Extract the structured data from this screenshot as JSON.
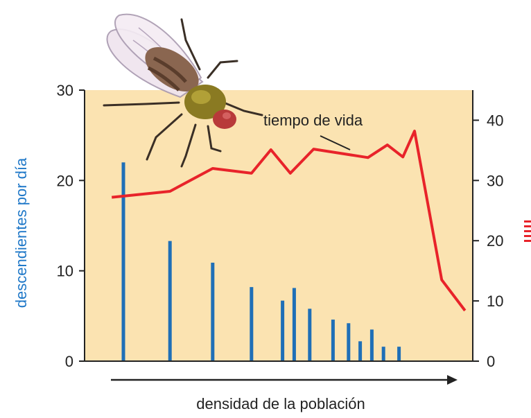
{
  "chart_data": {
    "type": "bar",
    "xlabel": "densidad de la población",
    "ylabel": "descendientes por día",
    "ylim": [
      0,
      30
    ],
    "y_ticks": [
      "0",
      "10",
      "20",
      "30"
    ],
    "y2_ticks": [
      "0",
      "10",
      "20",
      "30",
      "40"
    ],
    "y2lim": [
      0,
      45
    ],
    "annotation": "tiempo de vida",
    "colors": {
      "plot_background": "#fbe3b1",
      "bars": "#1f6fb7",
      "line": "#e8232a",
      "ylabel": "#1f78c8"
    },
    "grid": false,
    "bars": {
      "x": [
        10,
        22,
        33,
        43,
        51,
        54,
        58,
        64,
        68,
        71,
        74,
        77,
        81
      ],
      "values": [
        22,
        13.3,
        10.9,
        8.2,
        6.7,
        8.1,
        5.8,
        4.6,
        4.2,
        2.2,
        3.5,
        1.6,
        1.6
      ]
    },
    "series": [
      {
        "x": [
          7,
          22,
          33,
          43,
          48,
          53,
          59,
          73,
          78,
          82,
          85,
          92,
          98
        ],
        "values": [
          27.2,
          28.2,
          32,
          31.2,
          35.1,
          31.2,
          35.2,
          33.8,
          35.9,
          33.9,
          38.2,
          13.5,
          8.4
        ]
      }
    ]
  }
}
